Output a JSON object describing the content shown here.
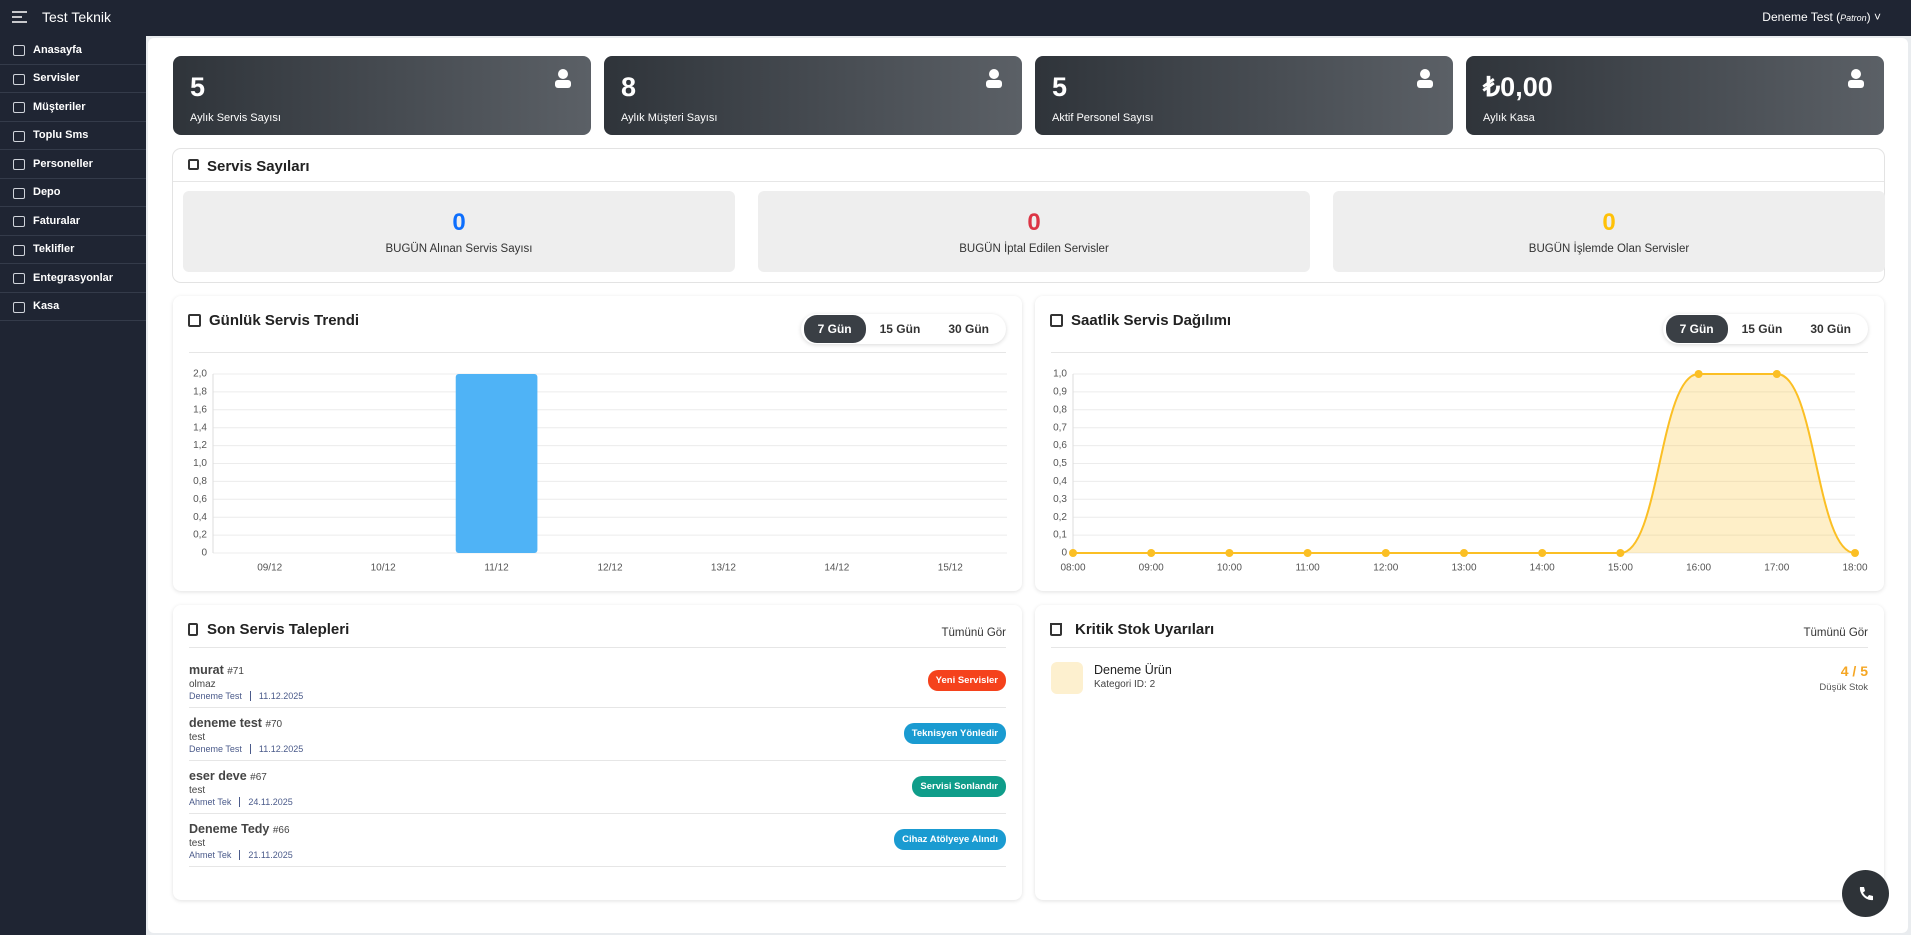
{
  "header": {
    "brand": "Test Teknik",
    "user": "Deneme Test",
    "role": "Patron"
  },
  "sidebar": [
    "Anasayfa",
    "Servisler",
    "Müşteriler",
    "Toplu Sms",
    "Personeller",
    "Depo",
    "Faturalar",
    "Teklifler",
    "Entegrasyonlar",
    "Kasa"
  ],
  "stats": [
    {
      "value": "5",
      "label": "Aylık Servis Sayısı"
    },
    {
      "value": "8",
      "label": "Aylık Müşteri Sayısı"
    },
    {
      "value": "5",
      "label": "Aktif Personel Sayısı"
    },
    {
      "value": "₺0,00",
      "label": "Aylık Kasa"
    }
  ],
  "service_counts": {
    "title": "Servis Sayıları",
    "items": [
      {
        "value": 0,
        "label": "BUGÜN Alınan Servis Sayısı",
        "color": "#0d6efd"
      },
      {
        "value": 0,
        "label": "BUGÜN İptal Edilen Servisler",
        "color": "#dc3545"
      },
      {
        "value": 0,
        "label": "BUGÜN İşlemde Olan Servisler",
        "color": "#ffc107"
      }
    ]
  },
  "chart_data": [
    {
      "type": "bar",
      "title": "Günlük Servis Trendi",
      "periods": [
        "7 Gün",
        "15 Gün",
        "30 Gün"
      ],
      "categories": [
        "09/12",
        "10/12",
        "11/12",
        "12/12",
        "13/12",
        "14/12",
        "15/12"
      ],
      "values": [
        0,
        0,
        2,
        0,
        0,
        0,
        0
      ],
      "color": "#4fb3f6",
      "ylim": [
        0,
        2
      ],
      "yticks": [
        0,
        {
          "value": 0.2,
          "label": "0,2"
        },
        {
          "value": 0.4,
          "label": "0,4"
        },
        {
          "value": 0.6,
          "label": "0,6"
        },
        {
          "value": 0.8,
          "label": "0,8"
        },
        {
          "value": 1,
          "label": "1,0"
        },
        {
          "value": 1.2,
          "label": "1,2"
        },
        {
          "value": 1.4,
          "label": "1,4"
        },
        {
          "value": 1.6,
          "label": "1,6"
        },
        {
          "value": 1.8,
          "label": "1,8"
        },
        {
          "value": 2,
          "label": "2,0"
        }
      ],
      "grid": true
    },
    {
      "type": "line",
      "title": "Saatlik Servis Dağılımı",
      "periods": [
        "7 Gün",
        "15 Gün",
        "30 Gün"
      ],
      "categories": [
        "08:00",
        "09:00",
        "10:00",
        "11:00",
        "12:00",
        "13:00",
        "14:00",
        "15:00",
        "16:00",
        "17:00",
        "18:00"
      ],
      "values": [
        0,
        0,
        0,
        0,
        0,
        0,
        0,
        0,
        1,
        1,
        0
      ],
      "color": "#fbbf24",
      "ylim": [
        0,
        1
      ],
      "yticks": [
        0,
        {
          "value": 0.1,
          "label": "0,1"
        },
        {
          "value": 0.2,
          "label": "0,2"
        },
        {
          "value": 0.3,
          "label": "0,3"
        },
        {
          "value": 0.4,
          "label": "0,4"
        },
        {
          "value": 0.5,
          "label": "0,5"
        },
        {
          "value": 0.6,
          "label": "0,6"
        },
        {
          "value": 0.7,
          "label": "0,7"
        },
        {
          "value": 0.8,
          "label": "0,8"
        },
        {
          "value": 0.9,
          "label": "0,9"
        },
        {
          "value": 1,
          "label": "1,0"
        }
      ],
      "grid": true
    }
  ],
  "recent": {
    "title": "Son Servis Talepleri",
    "link": "Tümünü Gör",
    "items": [
      {
        "name": "murat",
        "id": "#71",
        "note": "olmaz",
        "user": "Deneme Test",
        "date": "11.12.2025",
        "status": "Yeni Servisler",
        "color": "#f5421c"
      },
      {
        "name": "deneme test",
        "id": "#70",
        "note": "test",
        "user": "Deneme Test",
        "date": "11.12.2025",
        "status": "Teknisyen Yönledir",
        "color": "#1a9bd1"
      },
      {
        "name": "eser deve",
        "id": "#67",
        "note": "test",
        "user": "Ahmet Tek",
        "date": "24.11.2025",
        "status": "Servisi Sonlandır",
        "color": "#0f9d8a"
      },
      {
        "name": "Deneme Tedy",
        "id": "#66",
        "note": "test",
        "user": "Ahmet Tek",
        "date": "21.11.2025",
        "status": "Cihaz Atölyeye Alındı",
        "color": "#1a9bd1"
      }
    ]
  },
  "stock": {
    "title": "Kritik Stok Uyarıları",
    "link": "Tümünü Gör",
    "items": [
      {
        "name": "Deneme Ürün",
        "category": "Kategori ID: 2",
        "stock": "4 / 5",
        "status": "Düşük Stok"
      }
    ]
  }
}
